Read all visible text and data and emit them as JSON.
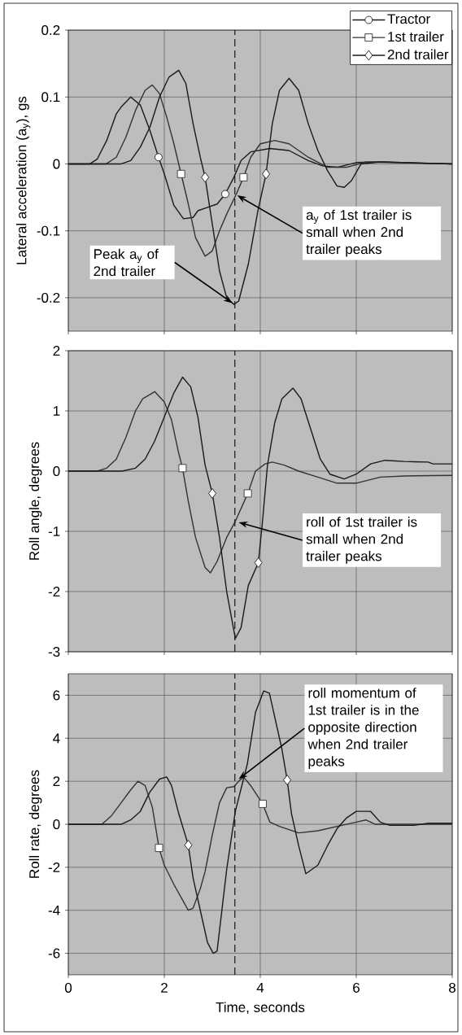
{
  "chart_data": [
    {
      "type": "line",
      "ylabel": "Lateral acceleration (a$_{y}$), gs",
      "xlim": [
        0,
        8
      ],
      "xticks": [
        0,
        2,
        4,
        6,
        8
      ],
      "ylim": [
        -0.25,
        0.2
      ],
      "yticks": [
        -0.2,
        -0.1,
        0,
        0.1,
        0.2
      ],
      "grid": true,
      "legend": "top right",
      "tick_labels": "y",
      "line_style": "solid",
      "series": [
        {
          "name": "Tractor",
          "color": "#1a1a1a",
          "x": [
            0,
            0.45,
            0.6,
            0.8,
            1.0,
            1.1,
            1.3,
            1.5,
            1.7,
            1.88,
            2.0,
            2.2,
            2.4,
            2.6,
            2.7,
            2.9,
            3.1,
            3.27,
            3.45,
            3.6,
            3.8,
            4.2,
            4.6,
            5.0,
            5.3,
            5.6,
            6.0,
            6.5,
            8
          ],
          "values": [
            0,
            0,
            0.007,
            0.035,
            0.075,
            0.085,
            0.1,
            0.088,
            0.05,
            0.01,
            -0.015,
            -0.062,
            -0.082,
            -0.08,
            -0.07,
            -0.065,
            -0.06,
            -0.045,
            -0.02,
            0.005,
            0.018,
            0.023,
            0.02,
            0.005,
            -0.003,
            -0.005,
            0.002,
            0.003,
            0
          ]
        },
        {
          "name": "1st trailer",
          "color": "#333333",
          "x": [
            0,
            0.79,
            1.0,
            1.2,
            1.4,
            1.6,
            1.75,
            1.9,
            2.05,
            2.2,
            2.35,
            2.5,
            2.65,
            2.85,
            3.0,
            3.15,
            3.3,
            3.5,
            3.65,
            3.8,
            4.0,
            4.3,
            4.6,
            5.0,
            5.4,
            5.8,
            6.2,
            8
          ],
          "values": [
            0,
            0,
            0.01,
            0.04,
            0.08,
            0.11,
            0.118,
            0.105,
            0.07,
            0.03,
            -0.015,
            -0.06,
            -0.11,
            -0.138,
            -0.13,
            -0.1,
            -0.075,
            -0.045,
            -0.02,
            0.01,
            0.03,
            0.035,
            0.03,
            0.01,
            -0.005,
            -0.005,
            0.003,
            0
          ]
        },
        {
          "name": "2nd trailer",
          "color": "#1a1a1a",
          "x": [
            0,
            1.1,
            1.3,
            1.5,
            1.7,
            1.9,
            2.1,
            2.3,
            2.45,
            2.6,
            2.75,
            2.85,
            3.0,
            3.15,
            3.3,
            3.45,
            3.55,
            3.75,
            3.95,
            4.12,
            4.25,
            4.4,
            4.6,
            4.8,
            5.0,
            5.2,
            5.4,
            5.6,
            5.75,
            5.9,
            6.1,
            6.5,
            8
          ],
          "values": [
            0,
            0,
            0.005,
            0.025,
            0.055,
            0.1,
            0.13,
            0.14,
            0.12,
            0.06,
            0.01,
            -0.02,
            -0.09,
            -0.16,
            -0.2,
            -0.21,
            -0.205,
            -0.15,
            -0.07,
            -0.015,
            0.06,
            0.11,
            0.128,
            0.11,
            0.06,
            0.02,
            -0.01,
            -0.033,
            -0.035,
            -0.025,
            0,
            0.003,
            0
          ]
        },
        {
          "type": "scatter",
          "color": "#1a1a1a",
          "marker": "circle",
          "x": [
            1.88,
            3.27
          ],
          "values": [
            0.01,
            -0.045
          ]
        },
        {
          "type": "scatter",
          "color": "#333333",
          "marker": "square",
          "x": [
            2.35,
            3.65
          ],
          "values": [
            -0.015,
            -0.02
          ]
        },
        {
          "type": "scatter",
          "color": "#1a1a1a",
          "marker": "diamond",
          "x": [
            2.85,
            4.12
          ],
          "values": [
            -0.02,
            -0.015
          ]
        }
      ],
      "ref_lines": [
        {
          "axis": "x",
          "value": 3.47,
          "color": "#1a1a1a",
          "line_style": "dashed"
        }
      ],
      "annotations": [
        {
          "text": "Peak a$_{y}$ of 2nd trailer",
          "x": 3.42,
          "y": -0.208
        },
        {
          "text": "a$_{y}$ of 1st trailer is small when 2nd trailer peaks",
          "x": 3.52,
          "y": -0.047
        }
      ]
    },
    {
      "type": "line",
      "ylabel": "Roll angle, degrees",
      "xlim": [
        0,
        8
      ],
      "xticks": [
        0,
        2,
        4,
        6,
        8
      ],
      "ylim": [
        -3,
        2
      ],
      "yticks": [
        -3,
        -2,
        -1,
        0,
        1,
        2
      ],
      "grid": true,
      "tick_labels": "y",
      "line_style": "solid",
      "series": [
        {
          "color": "#333333",
          "x": [
            0,
            0.6,
            0.8,
            1.0,
            1.2,
            1.4,
            1.55,
            1.8,
            2.0,
            2.15,
            2.3,
            2.38,
            2.5,
            2.65,
            2.85,
            2.96,
            3.1,
            3.3,
            3.47,
            3.74,
            3.9,
            4.1,
            4.25,
            4.5,
            4.8,
            5.2,
            5.6,
            6.0,
            6.5,
            7.0,
            8
          ],
          "values": [
            0,
            0,
            0.05,
            0.2,
            0.56,
            1.0,
            1.2,
            1.32,
            1.15,
            0.85,
            0.3,
            0.05,
            -0.5,
            -1.1,
            -1.6,
            -1.69,
            -1.5,
            -1.1,
            -0.85,
            -0.37,
            0,
            0.12,
            0.15,
            0.1,
            0,
            -0.1,
            -0.2,
            -0.2,
            -0.1,
            -0.08,
            -0.07
          ]
        },
        {
          "color": "#1a1a1a",
          "x": [
            0,
            1.12,
            1.4,
            1.6,
            1.8,
            2.0,
            2.2,
            2.38,
            2.55,
            2.7,
            2.85,
            3.0,
            3.15,
            3.3,
            3.48,
            3.6,
            3.75,
            3.96,
            4.05,
            4.15,
            4.3,
            4.45,
            4.68,
            4.85,
            5.05,
            5.25,
            5.45,
            5.75,
            6.0,
            6.3,
            6.6,
            7.0,
            7.5,
            7.6,
            8
          ],
          "values": [
            0,
            0,
            0.05,
            0.2,
            0.5,
            0.9,
            1.3,
            1.56,
            1.4,
            0.9,
            0.1,
            -0.37,
            -1.1,
            -2.0,
            -2.78,
            -2.6,
            -1.9,
            -1.52,
            -0.8,
            0.1,
            0.8,
            1.2,
            1.38,
            1.2,
            0.7,
            0.2,
            -0.05,
            -0.13,
            -0.05,
            0.12,
            0.18,
            0.16,
            0.15,
            0.12,
            0.12
          ]
        },
        {
          "type": "scatter",
          "color": "#333333",
          "marker": "square",
          "x": [
            2.38,
            3.74
          ],
          "values": [
            0.05,
            -0.37
          ]
        },
        {
          "type": "scatter",
          "color": "#1a1a1a",
          "marker": "diamond",
          "x": [
            3.0,
            3.96
          ],
          "values": [
            -0.37,
            -1.52
          ]
        }
      ],
      "ref_lines": [
        {
          "axis": "x",
          "value": 3.47,
          "color": "#1a1a1a",
          "line_style": "dashed"
        }
      ],
      "annotations": [
        {
          "text": "roll of 1st trailer is small when 2nd trailer peaks",
          "x": 3.55,
          "y": -0.85
        }
      ]
    },
    {
      "type": "line",
      "xlabel": "Time, seconds",
      "ylabel": "Roll rate, degrees",
      "xlim": [
        0,
        8
      ],
      "xticks": [
        0,
        2,
        4,
        6,
        8
      ],
      "ylim": [
        -7,
        7
      ],
      "yticks": [
        -6,
        -4,
        -2,
        0,
        2,
        4,
        6
      ],
      "grid": true,
      "line_style": "solid",
      "series": [
        {
          "color": "#333333",
          "x": [
            0,
            0.7,
            0.9,
            1.1,
            1.3,
            1.45,
            1.6,
            1.75,
            1.89,
            2.0,
            2.2,
            2.4,
            2.5,
            2.6,
            2.75,
            2.85,
            3.0,
            3.15,
            3.3,
            3.45,
            3.55,
            3.65,
            3.8,
            4.05,
            4.2,
            4.4,
            4.8,
            5.2,
            5.6,
            6.0,
            6.2,
            6.4,
            8
          ],
          "values": [
            0,
            0,
            0.4,
            1.0,
            1.6,
            2.0,
            1.8,
            0.8,
            -1.1,
            -1.9,
            -2.8,
            -3.6,
            -4.0,
            -3.9,
            -3.0,
            -2.2,
            -0.5,
            1.0,
            1.7,
            1.75,
            2.0,
            2.2,
            1.8,
            0.95,
            0.1,
            -0.1,
            -0.4,
            -0.3,
            -0.1,
            0.1,
            0.2,
            0,
            0
          ]
        },
        {
          "color": "#1a1a1a",
          "x": [
            0,
            1.1,
            1.3,
            1.5,
            1.7,
            1.9,
            2.05,
            2.15,
            2.3,
            2.5,
            2.6,
            2.75,
            2.9,
            3.02,
            3.1,
            3.3,
            3.48,
            3.73,
            3.9,
            4.07,
            4.19,
            4.3,
            4.45,
            4.56,
            4.65,
            4.8,
            4.95,
            5.2,
            5.4,
            5.6,
            5.8,
            6.0,
            6.3,
            6.5,
            6.7,
            7.2,
            7.5,
            8
          ],
          "values": [
            0,
            0,
            0.2,
            0.6,
            1.5,
            2.1,
            2.2,
            1.8,
            0.5,
            -0.97,
            -2.5,
            -4.0,
            -5.5,
            -6.0,
            -5.9,
            -2.1,
            0.6,
            2.8,
            5.2,
            6.2,
            6.1,
            5.0,
            3.5,
            2.06,
            0.5,
            -1.0,
            -2.3,
            -1.9,
            -1.0,
            -0.2,
            0.3,
            0.6,
            0.6,
            0.1,
            -0.05,
            -0.05,
            0.05,
            0.05
          ]
        },
        {
          "type": "scatter",
          "color": "#333333",
          "marker": "square",
          "x": [
            1.89,
            4.05
          ],
          "values": [
            -1.1,
            0.95
          ]
        },
        {
          "type": "scatter",
          "color": "#1a1a1a",
          "marker": "diamond",
          "x": [
            2.5,
            4.56
          ],
          "values": [
            -0.97,
            2.06
          ]
        }
      ],
      "ref_lines": [
        {
          "axis": "x",
          "value": 3.47,
          "color": "#1a1a1a",
          "line_style": "dashed"
        }
      ],
      "annotations": [
        {
          "text": "roll momentum of 1st trailer is in the opposite direction when 2nd trailer peaks",
          "x": 3.55,
          "y": 2.1
        }
      ]
    }
  ]
}
